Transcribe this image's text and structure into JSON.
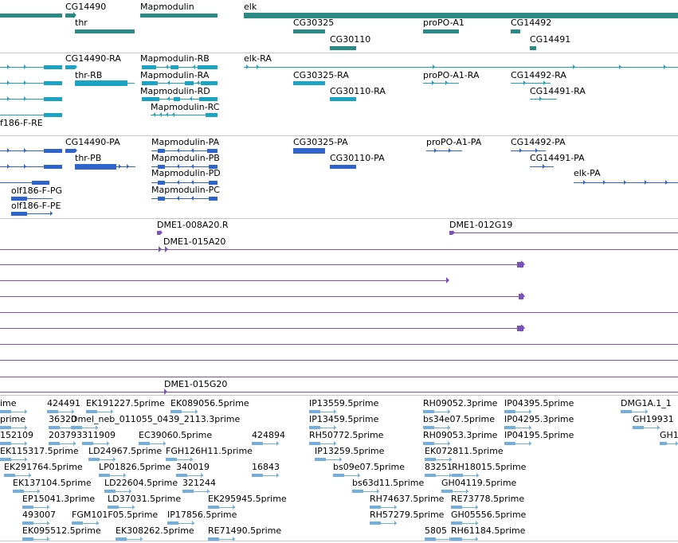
{
  "colors": {
    "gene": "#2a8a86",
    "mrna": "#1aa3c2",
    "protein": "#2f64cc",
    "clone": "#7a52b8",
    "est": "#73aee0",
    "separator": "#c8c8c8"
  },
  "tracks": [
    {
      "id": "genes",
      "color": "gene",
      "labels": [
        "CG14490",
        "Mapmodulin",
        "elk",
        "thr",
        "CG30325",
        "proPO-A1",
        "CG14492",
        "CG30110",
        "CG14491"
      ]
    },
    {
      "id": "transcripts",
      "color": "mrna",
      "labels": [
        "CG14490-RA",
        "Mapmodulin-RB",
        "elk-RA",
        "thr-RB",
        "Mapmodulin-RA",
        "CG30325-RA",
        "proPO-A1-RA",
        "CG14492-RA",
        "Mapmodulin-RD",
        "CG30110-RA",
        "CG14491-RA",
        "Mapmodulin-RC",
        "f186-F-RE"
      ]
    },
    {
      "id": "proteins",
      "color": "protein",
      "labels": [
        "CG14490-PA",
        "Mapmodulin-PA",
        "CG30325-PA",
        "proPO-A1-PA",
        "CG14492-PA",
        "thr-PB",
        "Mapmodulin-PB",
        "CG30110-PA",
        "CG14491-PA",
        "Mapmodulin-PD",
        "elk-PA",
        "olf186-F-PG",
        "Mapmodulin-PC",
        "olf186-F-PE"
      ]
    },
    {
      "id": "clones",
      "color": "clone",
      "labels": [
        "DME1-008A20.R",
        "DME1-012G19",
        "DME1-015A20",
        "DME1-015G20"
      ]
    },
    {
      "id": "ests",
      "color": "est",
      "labels": [
        "ime",
        "424491",
        "EK191227.5prime",
        "EK089056.5prime",
        "IP13559.5prime",
        "RH09052.3prime",
        "IP04395.5prime",
        "DMG1A.1_1",
        "prime",
        "36320",
        "Dmel_neb_011055_0439_2113.3prime",
        "IP13459.5prime",
        "bs34e07.5prime",
        "IP04295.3prime",
        "GH19931",
        "152109",
        "203793",
        "311909",
        "EC39060.5prime",
        "424894",
        "RH50772.5prime",
        "RH09053.3prime",
        "IP04195.5prime",
        "GH1",
        "EK115317.5prime",
        "LD24967.5prime",
        "FGH126H11.5prime",
        "IP13259.5prime",
        "EK072811.5prime",
        "EK291764.5prime",
        "LP01826.5prime",
        "340019",
        "16843",
        "bs09e07.5prime",
        "83251",
        "RH18015.5prime",
        "EK137104.5prime",
        "LD22604.5prime",
        "321244",
        "bs63d11.5prime",
        "GH04119.5prime",
        "EP15041.3prime",
        "LD37031.5prime",
        "EK295945.5prime",
        "RH74637.5prime",
        "RE73778.5prime",
        "493007",
        "FGM101F05.5prime",
        "IP17856.5prime",
        "RH57279.5prime",
        "GH05556.5prime",
        "EK095512.5prime",
        "EK308262.5prime",
        "RE71490.5prime",
        "5805",
        "RH61184.5prime"
      ]
    }
  ]
}
